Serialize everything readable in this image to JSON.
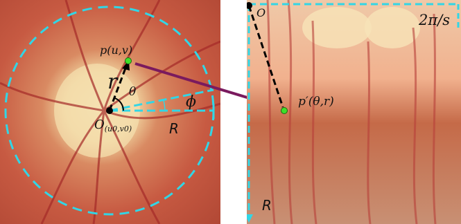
{
  "left": {
    "point_label": "p(u,v)",
    "radius_symbol": "r",
    "angle_symbol": "θ",
    "phi_symbol": "ϕ",
    "origin_label_main": "O",
    "origin_label_sub": "(u0,v0)",
    "R_label": "R"
  },
  "right": {
    "origin_label": "O",
    "point_label": "p′(θ,r)",
    "period_label": "2π/s",
    "R_label": "R"
  },
  "colors": {
    "dashed_circle": "#31d6e6",
    "mapping_arrow": "#7a1a5e",
    "point_fill": "#3ee02a",
    "fundus_center": "#f2d9a6",
    "fundus_bg": "#c5573f"
  }
}
